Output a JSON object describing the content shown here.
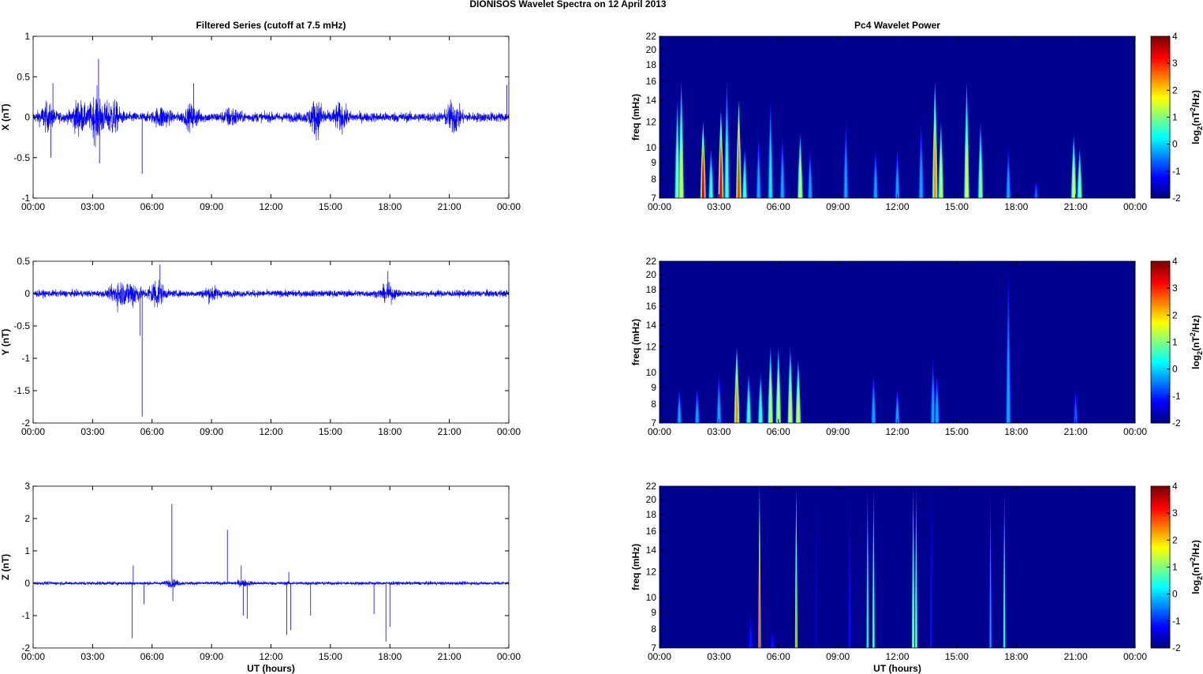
{
  "title": "DIONISOS Wavelet Spectra on 12 April     2013",
  "chart_data": [
    {
      "type": "line",
      "title": "Filtered Series (cutoff at 7.5 mHz)",
      "ylabel": "X (nT)",
      "xlabel": "",
      "xlim": [
        0,
        24
      ],
      "ylim": [
        -1,
        1
      ],
      "yticks": [
        "-1",
        "-0.5",
        "0",
        "0.5",
        "1"
      ],
      "ytick_values": [
        -1,
        -0.5,
        0,
        0.5,
        1
      ],
      "noise_base": 0.07,
      "bursts": [
        [
          0.7,
          0.15
        ],
        [
          2.3,
          0.2
        ],
        [
          3.2,
          0.3
        ],
        [
          4.0,
          0.22
        ],
        [
          6.5,
          0.12
        ],
        [
          8.0,
          0.13
        ],
        [
          10.0,
          0.1
        ],
        [
          14.3,
          0.22
        ],
        [
          15.5,
          0.15
        ],
        [
          21.2,
          0.2
        ]
      ],
      "spikes": [
        [
          0.9,
          -0.5
        ],
        [
          1.0,
          0.42
        ],
        [
          3.3,
          0.72
        ],
        [
          3.35,
          -0.57
        ],
        [
          5.5,
          -0.7
        ],
        [
          8.1,
          0.42
        ],
        [
          23.9,
          0.4
        ]
      ]
    },
    {
      "type": "line",
      "ylabel": "Y (nT)",
      "xlabel": "",
      "xlim": [
        0,
        24
      ],
      "ylim": [
        -2,
        0.5
      ],
      "yticks": [
        "-2",
        "-1.5",
        "-1",
        "-0.5",
        "0",
        "0.5"
      ],
      "ytick_values": [
        -2,
        -1.5,
        -1,
        -0.5,
        0,
        0.5
      ],
      "noise_base": 0.06,
      "bursts": [
        [
          4.3,
          0.2
        ],
        [
          5.0,
          0.22
        ],
        [
          6.2,
          0.25
        ],
        [
          9.0,
          0.1
        ],
        [
          17.9,
          0.12
        ]
      ],
      "spikes": [
        [
          5.4,
          -0.65
        ],
        [
          5.5,
          -1.9
        ],
        [
          6.4,
          0.45
        ],
        [
          17.9,
          0.35
        ]
      ]
    },
    {
      "type": "line",
      "ylabel": "Z (nT)",
      "xlabel": "UT (hours)",
      "xlim": [
        0,
        24
      ],
      "ylim": [
        -2,
        3
      ],
      "yticks": [
        "-2",
        "-1",
        "0",
        "1",
        "2",
        "3"
      ],
      "ytick_values": [
        -2,
        -1,
        0,
        1,
        2,
        3
      ],
      "noise_base": 0.06,
      "bursts": [
        [
          7.0,
          0.1
        ],
        [
          10.6,
          0.08
        ]
      ],
      "spikes": [
        [
          5.0,
          -1.7
        ],
        [
          5.05,
          0.55
        ],
        [
          5.6,
          -0.65
        ],
        [
          7.0,
          2.45
        ],
        [
          7.05,
          -0.55
        ],
        [
          9.8,
          1.65
        ],
        [
          10.5,
          0.55
        ],
        [
          10.6,
          -1.0
        ],
        [
          10.8,
          -1.1
        ],
        [
          12.8,
          -1.6
        ],
        [
          12.9,
          0.35
        ],
        [
          13.0,
          -1.45
        ],
        [
          14.0,
          -1.0
        ],
        [
          17.2,
          -0.95
        ],
        [
          17.8,
          -1.8
        ],
        [
          18.0,
          -1.35
        ]
      ]
    },
    {
      "type": "heatmap",
      "title": "Pc4 Wavelet Power",
      "ylabel": "freq (mHz)",
      "xlabel": "",
      "xlim": [
        0,
        24
      ],
      "ylim": [
        7,
        22
      ],
      "colorbar_label": "log2(nT^2/Hz)",
      "clim": [
        -2,
        4
      ],
      "blobs": [
        [
          0.9,
          1.5,
          14
        ],
        [
          1.1,
          2,
          16
        ],
        [
          2.2,
          4,
          12
        ],
        [
          2.6,
          1,
          10
        ],
        [
          3.1,
          4,
          13
        ],
        [
          3.4,
          1,
          16
        ],
        [
          4.0,
          3.5,
          14
        ],
        [
          4.3,
          1,
          10
        ],
        [
          5.0,
          0,
          11
        ],
        [
          5.6,
          0.5,
          14
        ],
        [
          6.2,
          0,
          11
        ],
        [
          7.1,
          2,
          11
        ],
        [
          7.6,
          0,
          10
        ],
        [
          9.4,
          0,
          12
        ],
        [
          10.9,
          0,
          10
        ],
        [
          12.0,
          0,
          10
        ],
        [
          13.2,
          0,
          12
        ],
        [
          13.9,
          3,
          16
        ],
        [
          14.2,
          2,
          12
        ],
        [
          15.5,
          2,
          16
        ],
        [
          16.2,
          1.5,
          12
        ],
        [
          17.6,
          0,
          10
        ],
        [
          19.0,
          -0.5,
          8
        ],
        [
          20.9,
          2,
          11
        ],
        [
          21.2,
          1.5,
          10
        ]
      ]
    },
    {
      "type": "heatmap",
      "ylabel": "freq (mHz)",
      "xlabel": "",
      "xlim": [
        0,
        24
      ],
      "ylim": [
        7,
        22
      ],
      "colorbar_label": "log2(nT^2/Hz)",
      "clim": [
        -2,
        4
      ],
      "blobs": [
        [
          1.0,
          0,
          9
        ],
        [
          1.9,
          0,
          9
        ],
        [
          3.0,
          0,
          10
        ],
        [
          3.9,
          3,
          12
        ],
        [
          4.5,
          1,
          10
        ],
        [
          5.1,
          1,
          10
        ],
        [
          5.6,
          2,
          12
        ],
        [
          6.0,
          2,
          12
        ],
        [
          6.6,
          2,
          12
        ],
        [
          7.0,
          2,
          11
        ],
        [
          10.8,
          0,
          10
        ],
        [
          12.0,
          0,
          9
        ],
        [
          13.8,
          0,
          11
        ],
        [
          14.0,
          0,
          10
        ],
        [
          17.6,
          0,
          20
        ],
        [
          21.0,
          -0.5,
          9
        ]
      ]
    },
    {
      "type": "heatmap",
      "ylabel": "freq (mHz)",
      "xlabel": "UT (hours)",
      "xlim": [
        0,
        24
      ],
      "ylim": [
        7,
        22
      ],
      "colorbar_label": "log2(nT^2/Hz)",
      "clim": [
        -2,
        4
      ],
      "blobs": [
        [
          5.05,
          3.5,
          22
        ],
        [
          6.9,
          3,
          22
        ],
        [
          10.5,
          1,
          22
        ],
        [
          10.8,
          1.5,
          22
        ],
        [
          12.8,
          2,
          22
        ],
        [
          12.95,
          1.5,
          22
        ],
        [
          16.7,
          0,
          22
        ],
        [
          17.4,
          1,
          22
        ],
        [
          4.6,
          -1,
          9
        ],
        [
          5.7,
          -1,
          8
        ],
        [
          7.9,
          -1.5,
          22
        ],
        [
          13.7,
          -1,
          22
        ],
        [
          9.6,
          -1,
          22
        ]
      ]
    }
  ],
  "xticks": [
    "00:00",
    "03:00",
    "06:00",
    "09:00",
    "12:00",
    "15:00",
    "18:00",
    "21:00",
    "00:00"
  ],
  "freq_ticks": [
    7,
    8,
    9,
    10,
    12,
    14,
    16,
    18,
    20,
    22
  ],
  "cbar_ticks": [
    -2,
    -1,
    0,
    1,
    2,
    3,
    4
  ],
  "colors": {
    "line": "#0000ff",
    "background": "#00008f"
  }
}
